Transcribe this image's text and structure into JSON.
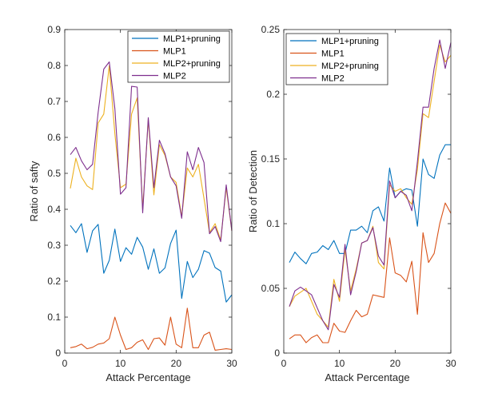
{
  "chart_data": [
    {
      "type": "line",
      "title": "",
      "xlabel": "Attack Percentage",
      "ylabel": "Ratio of safty",
      "xlim": [
        0,
        30
      ],
      "ylim": [
        0,
        0.9
      ],
      "xticks": [
        "0",
        "10",
        "20",
        "30"
      ],
      "xtick_values": [
        0,
        10,
        20,
        30
      ],
      "yticks": [
        "0",
        "0.1",
        "0.2",
        "0.3",
        "0.4",
        "0.5",
        "0.6",
        "0.7",
        "0.8",
        "0.9"
      ],
      "ytick_values": [
        0,
        0.1,
        0.2,
        0.3,
        0.4,
        0.5,
        0.6,
        0.7,
        0.8,
        0.9
      ],
      "grid": false,
      "legend": "top-right",
      "x": [
        1,
        2,
        3,
        4,
        5,
        6,
        7,
        8,
        9,
        10,
        11,
        12,
        13,
        14,
        15,
        16,
        17,
        18,
        19,
        20,
        21,
        22,
        23,
        24,
        25,
        26,
        27,
        28,
        29,
        30
      ],
      "series": [
        {
          "name": "MLP1+pruning",
          "color": "#0072BD",
          "values": [
            0.355,
            0.335,
            0.36,
            0.28,
            0.34,
            0.358,
            0.222,
            0.258,
            0.345,
            0.255,
            0.293,
            0.275,
            0.322,
            0.295,
            0.233,
            0.29,
            0.222,
            0.237,
            0.305,
            0.342,
            0.152,
            0.255,
            0.21,
            0.233,
            0.285,
            0.278,
            0.238,
            0.228,
            0.142,
            0.162
          ]
        },
        {
          "name": "MLP1",
          "color": "#D95319",
          "values": [
            0.015,
            0.018,
            0.025,
            0.012,
            0.016,
            0.025,
            0.028,
            0.04,
            0.1,
            0.05,
            0.01,
            0.015,
            0.03,
            0.037,
            0.01,
            0.04,
            0.042,
            0.022,
            0.1,
            0.025,
            0.015,
            0.125,
            0.015,
            0.015,
            0.05,
            0.058,
            0.008,
            0.01,
            0.012,
            0.01
          ]
        },
        {
          "name": "MLP2+pruning",
          "color": "#EDB120",
          "values": [
            0.458,
            0.542,
            0.49,
            0.465,
            0.455,
            0.64,
            0.665,
            0.8,
            0.61,
            0.46,
            0.47,
            0.665,
            0.71,
            0.4,
            0.65,
            0.44,
            0.58,
            0.55,
            0.49,
            0.475,
            0.38,
            0.515,
            0.49,
            0.525,
            0.43,
            0.335,
            0.36,
            0.315,
            0.46,
            0.34
          ]
        },
        {
          "name": "MLP2",
          "color": "#7E2F8E",
          "values": [
            0.552,
            0.572,
            0.535,
            0.51,
            0.525,
            0.67,
            0.79,
            0.81,
            0.68,
            0.442,
            0.46,
            0.742,
            0.74,
            0.39,
            0.655,
            0.46,
            0.592,
            0.555,
            0.49,
            0.465,
            0.375,
            0.56,
            0.51,
            0.572,
            0.53,
            0.332,
            0.352,
            0.31,
            0.468,
            0.34
          ]
        }
      ]
    },
    {
      "type": "line",
      "title": "",
      "xlabel": "Attack Percentage",
      "ylabel": "Ratio of Detection",
      "xlim": [
        0,
        30
      ],
      "ylim": [
        0,
        0.25
      ],
      "xticks": [
        "0",
        "10",
        "20",
        "30"
      ],
      "xtick_values": [
        0,
        10,
        20,
        30
      ],
      "yticks": [
        "0",
        "0.05",
        "0.1",
        "0.15",
        "0.2",
        "0.25"
      ],
      "ytick_values": [
        0,
        0.05,
        0.1,
        0.15,
        0.2,
        0.25
      ],
      "grid": false,
      "legend": "top-right",
      "x": [
        1,
        2,
        3,
        4,
        5,
        6,
        7,
        8,
        9,
        10,
        11,
        12,
        13,
        14,
        15,
        16,
        17,
        18,
        19,
        20,
        21,
        22,
        23,
        24,
        25,
        26,
        27,
        28,
        29,
        30
      ],
      "series": [
        {
          "name": "MLP1+pruning",
          "color": "#0072BD",
          "values": [
            0.07,
            0.078,
            0.073,
            0.069,
            0.077,
            0.078,
            0.083,
            0.08,
            0.087,
            0.077,
            0.077,
            0.095,
            0.095,
            0.098,
            0.093,
            0.11,
            0.113,
            0.102,
            0.143,
            0.12,
            0.125,
            0.127,
            0.126,
            0.098,
            0.15,
            0.138,
            0.135,
            0.153,
            0.161,
            0.161
          ]
        },
        {
          "name": "MLP1",
          "color": "#D95319",
          "values": [
            0.011,
            0.014,
            0.014,
            0.008,
            0.012,
            0.014,
            0.008,
            0.008,
            0.023,
            0.017,
            0.016,
            0.025,
            0.033,
            0.028,
            0.03,
            0.045,
            0.044,
            0.043,
            0.089,
            0.062,
            0.06,
            0.055,
            0.071,
            0.03,
            0.093,
            0.07,
            0.077,
            0.1,
            0.116,
            0.108
          ]
        },
        {
          "name": "MLP2+pruning",
          "color": "#EDB120",
          "values": [
            0.036,
            0.044,
            0.047,
            0.05,
            0.04,
            0.03,
            0.025,
            0.02,
            0.057,
            0.04,
            0.08,
            0.048,
            0.065,
            0.085,
            0.087,
            0.098,
            0.07,
            0.065,
            0.13,
            0.125,
            0.127,
            0.12,
            0.115,
            0.142,
            0.185,
            0.182,
            0.21,
            0.238,
            0.225,
            0.23
          ]
        },
        {
          "name": "MLP2",
          "color": "#7E2F8E",
          "values": [
            0.036,
            0.048,
            0.051,
            0.048,
            0.045,
            0.035,
            0.025,
            0.018,
            0.053,
            0.043,
            0.084,
            0.045,
            0.063,
            0.085,
            0.087,
            0.097,
            0.075,
            0.068,
            0.133,
            0.12,
            0.125,
            0.122,
            0.11,
            0.148,
            0.19,
            0.19,
            0.22,
            0.242,
            0.22,
            0.24
          ]
        }
      ]
    }
  ]
}
